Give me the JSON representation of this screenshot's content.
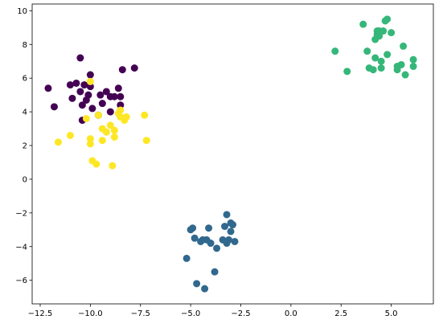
{
  "chart_data": {
    "type": "scatter",
    "title": "",
    "xlabel": "",
    "ylabel": "",
    "xlim": [
      -12.9,
      7.1
    ],
    "ylim": [
      -7.4,
      10.4
    ],
    "xticks": [
      -12.5,
      -10.0,
      -7.5,
      -5.0,
      -2.5,
      0.0,
      2.5,
      5.0
    ],
    "xtick_labels": [
      "−12.5",
      "−10.0",
      "−7.5",
      "−5.0",
      "−2.5",
      "0.0",
      "2.5",
      "5.0"
    ],
    "yticks": [
      -6,
      -4,
      -2,
      0,
      2,
      4,
      6,
      8,
      10
    ],
    "ytick_labels": [
      "−6",
      "−4",
      "−2",
      "0",
      "2",
      "4",
      "6",
      "8",
      "10"
    ],
    "grid": false,
    "series": [
      {
        "color": "#440154",
        "points": [
          [
            -12.1,
            5.4
          ],
          [
            -11.8,
            4.3
          ],
          [
            -11.0,
            5.6
          ],
          [
            -10.9,
            4.8
          ],
          [
            -10.7,
            5.7
          ],
          [
            -10.5,
            7.2
          ],
          [
            -10.5,
            5.2
          ],
          [
            -10.4,
            4.4
          ],
          [
            -10.4,
            3.5
          ],
          [
            -10.3,
            5.6
          ],
          [
            -10.2,
            4.7
          ],
          [
            -10.1,
            5.0
          ],
          [
            -10.0,
            5.5
          ],
          [
            -10.0,
            6.2
          ],
          [
            -9.9,
            4.2
          ],
          [
            -9.6,
            3.8
          ],
          [
            -9.5,
            5.0
          ],
          [
            -9.4,
            4.5
          ],
          [
            -9.2,
            5.2
          ],
          [
            -9.0,
            4.9
          ],
          [
            -9.0,
            4.0
          ],
          [
            -8.8,
            4.9
          ],
          [
            -8.6,
            5.4
          ],
          [
            -8.5,
            4.9
          ],
          [
            -8.5,
            4.4
          ],
          [
            -8.4,
            6.5
          ],
          [
            -7.8,
            6.6
          ]
        ]
      },
      {
        "color": "#31688e",
        "points": [
          [
            -5.2,
            -4.7
          ],
          [
            -5.0,
            -3.0
          ],
          [
            -4.9,
            -2.9
          ],
          [
            -4.8,
            -3.5
          ],
          [
            -4.7,
            -6.2
          ],
          [
            -4.5,
            -3.7
          ],
          [
            -4.4,
            -3.6
          ],
          [
            -4.3,
            -6.5
          ],
          [
            -4.2,
            -3.6
          ],
          [
            -4.1,
            -2.9
          ],
          [
            -4.0,
            -3.8
          ],
          [
            -3.8,
            -5.5
          ],
          [
            -3.7,
            -4.1
          ],
          [
            -3.4,
            -3.6
          ],
          [
            -3.3,
            -2.8
          ],
          [
            -3.2,
            -2.1
          ],
          [
            -3.2,
            -3.8
          ],
          [
            -3.1,
            -3.6
          ],
          [
            -3.0,
            -2.6
          ],
          [
            -3.0,
            -3.1
          ],
          [
            -2.9,
            -2.7
          ],
          [
            -2.8,
            -3.7
          ]
        ]
      },
      {
        "color": "#35b779",
        "points": [
          [
            2.2,
            7.6
          ],
          [
            2.8,
            6.4
          ],
          [
            3.6,
            9.2
          ],
          [
            3.8,
            7.6
          ],
          [
            3.9,
            6.6
          ],
          [
            4.1,
            6.5
          ],
          [
            4.2,
            7.2
          ],
          [
            4.2,
            8.3
          ],
          [
            4.3,
            8.6
          ],
          [
            4.3,
            8.8
          ],
          [
            4.4,
            8.8
          ],
          [
            4.4,
            8.5
          ],
          [
            4.5,
            7.0
          ],
          [
            4.5,
            6.6
          ],
          [
            4.6,
            8.8
          ],
          [
            4.7,
            9.4
          ],
          [
            4.8,
            9.5
          ],
          [
            4.8,
            7.4
          ],
          [
            5.0,
            8.7
          ],
          [
            5.3,
            6.7
          ],
          [
            5.3,
            6.5
          ],
          [
            5.5,
            6.8
          ],
          [
            5.6,
            7.9
          ],
          [
            5.7,
            6.2
          ],
          [
            6.1,
            6.7
          ],
          [
            6.1,
            7.1
          ]
        ]
      },
      {
        "color": "#fde725",
        "points": [
          [
            -11.6,
            2.2
          ],
          [
            -11.0,
            2.6
          ],
          [
            -10.2,
            3.6
          ],
          [
            -10.0,
            2.1
          ],
          [
            -10.0,
            2.4
          ],
          [
            -10.0,
            5.8
          ],
          [
            -9.9,
            1.1
          ],
          [
            -9.7,
            0.9
          ],
          [
            -9.6,
            3.8
          ],
          [
            -9.4,
            3.0
          ],
          [
            -9.4,
            2.3
          ],
          [
            -9.2,
            2.8
          ],
          [
            -9.0,
            3.2
          ],
          [
            -8.9,
            0.8
          ],
          [
            -8.8,
            2.5
          ],
          [
            -8.8,
            2.9
          ],
          [
            -8.6,
            3.9
          ],
          [
            -8.5,
            3.7
          ],
          [
            -8.5,
            4.1
          ],
          [
            -8.3,
            3.5
          ],
          [
            -8.2,
            3.7
          ],
          [
            -7.3,
            3.8
          ],
          [
            -7.2,
            2.3
          ]
        ]
      }
    ]
  }
}
